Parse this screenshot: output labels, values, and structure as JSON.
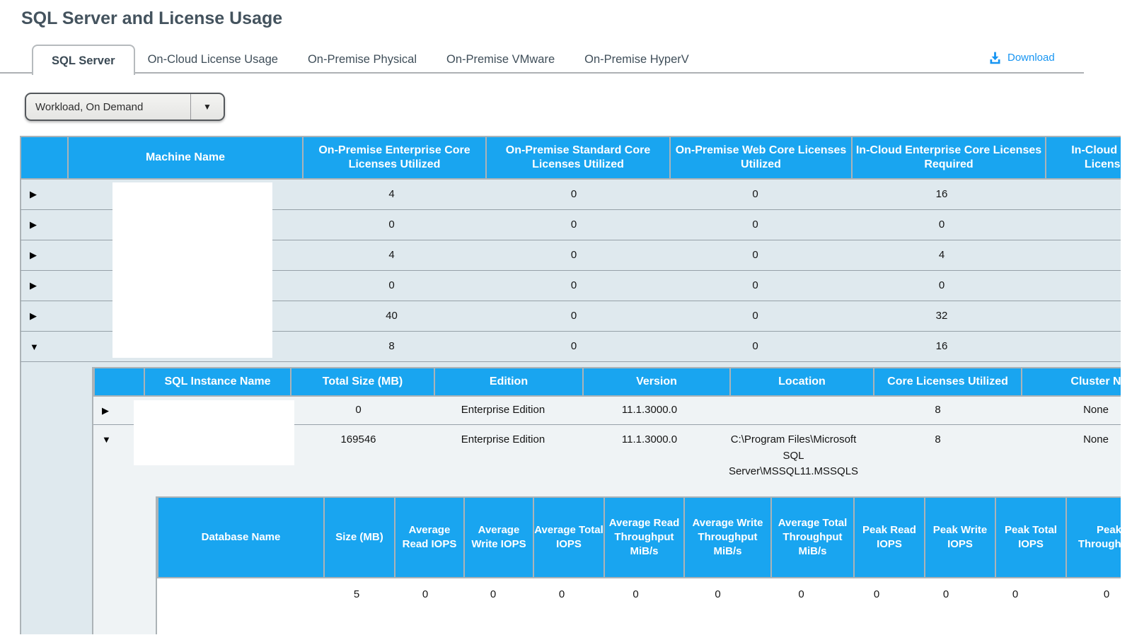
{
  "page_title": "SQL Server and License Usage",
  "tabs": {
    "items": [
      {
        "label": "SQL Server",
        "active": true
      },
      {
        "label": "On-Cloud License Usage",
        "active": false
      },
      {
        "label": "On-Premise Physical",
        "active": false
      },
      {
        "label": "On-Premise VMware",
        "active": false
      },
      {
        "label": "On-Premise HyperV",
        "active": false
      }
    ]
  },
  "toolbar": {
    "download_label": "Download"
  },
  "workload_dropdown": {
    "value": "Workload, On Demand"
  },
  "colors": {
    "header_blue": "#19A5F0",
    "row_blue": "#DFE9EE",
    "row_light": "#EFF3F5",
    "link_blue": "#1795F2",
    "border_gray": "#ACB3B7",
    "title_slate": "#44535E"
  },
  "machine_table": {
    "headers": [
      "",
      "Machine Name",
      "On-Premise Enterprise Core Licenses Utilized",
      "On-Premise Standard Core Licenses Utilized",
      "On-Premise Web Core Licenses Utilized",
      "In-Cloud Enterprise Core Licenses Required",
      "In-Cloud Standard Core Licenses Required"
    ],
    "rows": [
      {
        "expand": "collapsed",
        "cells": [
          "",
          "4",
          "0",
          "0",
          "16",
          ""
        ]
      },
      {
        "expand": "collapsed",
        "cells": [
          "",
          "0",
          "0",
          "0",
          "0",
          ""
        ]
      },
      {
        "expand": "collapsed",
        "cells": [
          "",
          "4",
          "0",
          "0",
          "4",
          ""
        ]
      },
      {
        "expand": "collapsed",
        "cells": [
          "",
          "0",
          "0",
          "0",
          "0",
          ""
        ]
      },
      {
        "expand": "collapsed",
        "cells": [
          "",
          "40",
          "0",
          "0",
          "32",
          ""
        ]
      },
      {
        "expand": "expanded",
        "cells": [
          "",
          "8",
          "0",
          "0",
          "16",
          ""
        ]
      }
    ]
  },
  "instance_table": {
    "headers": [
      "",
      "SQL Instance Name",
      "Total Size (MB)",
      "Edition",
      "Version",
      "Location",
      "Core Licenses Utilized",
      "Cluster Name"
    ],
    "rows": [
      {
        "expand": "collapsed",
        "cells": [
          "",
          "0",
          "Enterprise Edition",
          "11.1.3000.0",
          "",
          "8",
          "None"
        ]
      },
      {
        "expand": "expanded",
        "align": "top",
        "cells": [
          "",
          "169546",
          "Enterprise Edition",
          "11.1.3000.0",
          "C:\\Program Files\\Microsoft SQL Server\\MSSQL11.MSSQLS",
          "8",
          "None"
        ]
      }
    ]
  },
  "database_table": {
    "headers": [
      "Database Name",
      "Size (MB)",
      "Average Read IOPS",
      "Average Write IOPS",
      "Average Total IOPS",
      "Average Read Throughput MiB/s",
      "Average Write Throughput MiB/s",
      "Average Total Throughput MiB/s",
      "Peak Read IOPS",
      "Peak Write IOPS",
      "Peak Total IOPS",
      "Peak Read Throughput MiB/s"
    ],
    "rows": [
      {
        "cells": [
          "",
          "5",
          "0",
          "0",
          "0",
          "0",
          "0",
          "0",
          "0",
          "0",
          "0",
          "0"
        ]
      }
    ]
  }
}
